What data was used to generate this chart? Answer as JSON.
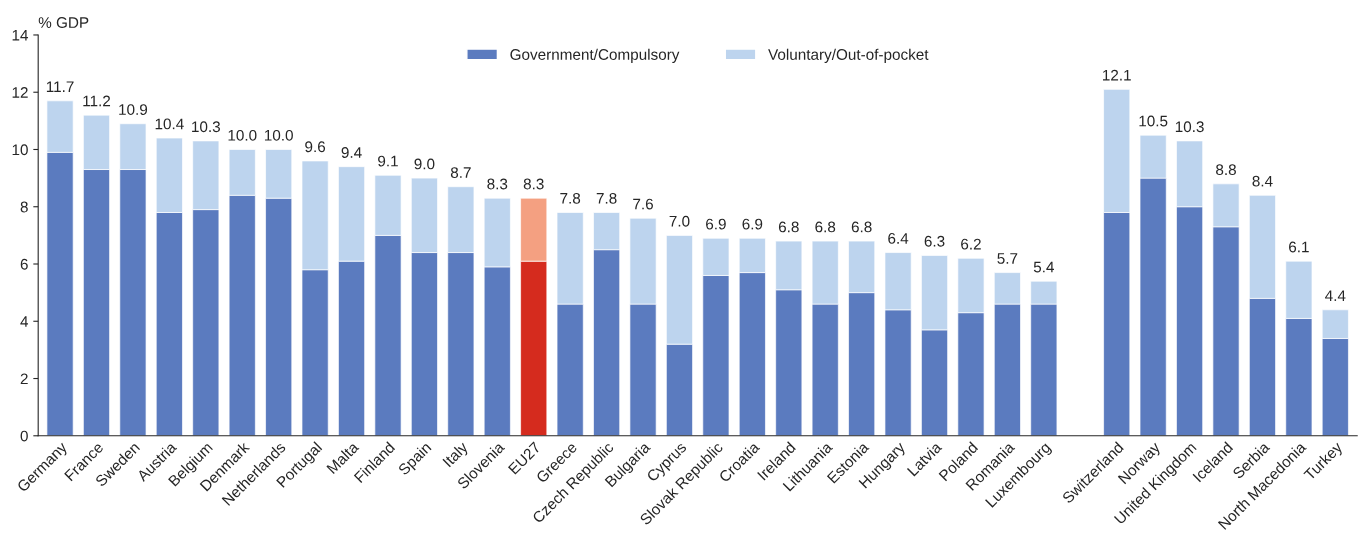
{
  "chart_data": {
    "type": "bar",
    "stacked": true,
    "ylabel": "% GDP",
    "ylim": [
      0,
      14
    ],
    "yticks": [
      0,
      2,
      4,
      6,
      8,
      10,
      12,
      14
    ],
    "grid": false,
    "legend": "top",
    "tick_labels": "xy",
    "categories": [
      "Germany",
      "France",
      "Sweden",
      "Austria",
      "Belgium",
      "Denmark",
      "Netherlands",
      "Portugal",
      "Malta",
      "Finland",
      "Spain",
      "Italy",
      "Slovenia",
      "EU27",
      "Greece",
      "Czech Republic",
      "Bulgaria",
      "Cyprus",
      "Slovak Republic",
      "Croatia",
      "Ireland",
      "Lithuania",
      "Estonia",
      "Hungary",
      "Latvia",
      "Poland",
      "Romania",
      "Luxembourg",
      null,
      "Switzerland",
      "Norway",
      "United Kingdom",
      "Iceland",
      "Serbia",
      "North Macedonia",
      "Turkey"
    ],
    "series": [
      {
        "name": "Government/Compulsory",
        "color": "#5b7bbf",
        "colors": [
          "#5b7bbf",
          "#5b7bbf",
          "#5b7bbf",
          "#5b7bbf",
          "#5b7bbf",
          "#5b7bbf",
          "#5b7bbf",
          "#5b7bbf",
          "#5b7bbf",
          "#5b7bbf",
          "#5b7bbf",
          "#5b7bbf",
          "#5b7bbf",
          "#d52b1e",
          "#5b7bbf",
          "#5b7bbf",
          "#5b7bbf",
          "#5b7bbf",
          "#5b7bbf",
          "#5b7bbf",
          "#5b7bbf",
          "#5b7bbf",
          "#5b7bbf",
          "#5b7bbf",
          "#5b7bbf",
          "#5b7bbf",
          "#5b7bbf",
          "#5b7bbf",
          "#5b7bbf",
          "#5b7bbf",
          "#5b7bbf",
          "#5b7bbf",
          "#5b7bbf",
          "#5b7bbf",
          "#5b7bbf",
          "#5b7bbf"
        ],
        "values": [
          9.9,
          9.3,
          9.3,
          7.8,
          7.9,
          8.4,
          8.3,
          5.8,
          6.1,
          7.0,
          6.4,
          6.4,
          5.9,
          6.1,
          4.6,
          6.5,
          4.6,
          3.2,
          5.6,
          5.7,
          5.1,
          4.6,
          5.0,
          4.4,
          3.7,
          4.3,
          4.6,
          4.6,
          null,
          7.8,
          9.0,
          8.0,
          7.3,
          4.8,
          4.1,
          3.4
        ]
      },
      {
        "name": "Voluntary/Out-of-pocket",
        "color": "#bdd4ee",
        "colors": [
          "#bdd4ee",
          "#bdd4ee",
          "#bdd4ee",
          "#bdd4ee",
          "#bdd4ee",
          "#bdd4ee",
          "#bdd4ee",
          "#bdd4ee",
          "#bdd4ee",
          "#bdd4ee",
          "#bdd4ee",
          "#bdd4ee",
          "#bdd4ee",
          "#f4a081",
          "#bdd4ee",
          "#bdd4ee",
          "#bdd4ee",
          "#bdd4ee",
          "#bdd4ee",
          "#bdd4ee",
          "#bdd4ee",
          "#bdd4ee",
          "#bdd4ee",
          "#bdd4ee",
          "#bdd4ee",
          "#bdd4ee",
          "#bdd4ee",
          "#bdd4ee",
          "#bdd4ee",
          "#bdd4ee",
          "#bdd4ee",
          "#bdd4ee",
          "#bdd4ee",
          "#bdd4ee",
          "#bdd4ee",
          "#bdd4ee"
        ],
        "values": [
          1.8,
          1.9,
          1.6,
          2.6,
          2.4,
          1.6,
          1.7,
          3.8,
          3.3,
          2.1,
          2.6,
          2.3,
          2.4,
          2.2,
          3.2,
          1.3,
          3.0,
          3.8,
          1.3,
          1.2,
          1.7,
          2.2,
          1.8,
          2.0,
          2.6,
          1.9,
          1.1,
          0.8,
          null,
          4.3,
          1.5,
          2.3,
          1.5,
          3.6,
          2.0,
          1.0
        ]
      }
    ],
    "totals": [
      "11.7",
      "11.2",
      "10.9",
      "10.4",
      "10.3",
      "10.0",
      "10.0",
      "9.6",
      "9.4",
      "9.1",
      "9.0",
      "8.7",
      "8.3",
      "8.3",
      "7.8",
      "7.8",
      "7.6",
      "7.0",
      "6.9",
      "6.9",
      "6.8",
      "6.8",
      "6.8",
      "6.4",
      "6.3",
      "6.2",
      "5.7",
      "5.4",
      null,
      "12.1",
      "10.5",
      "10.3",
      "8.8",
      "8.4",
      "6.1",
      "4.4"
    ]
  }
}
